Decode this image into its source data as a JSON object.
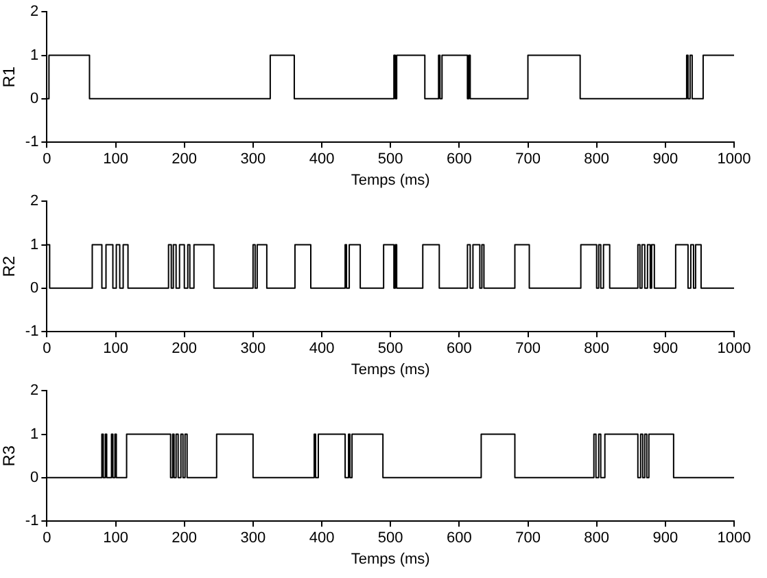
{
  "chart_data": [
    {
      "type": "line",
      "ylabel": "R1",
      "xlabel": "Temps (ms)",
      "xlim": [
        0,
        1000
      ],
      "xticks": [
        0,
        100,
        200,
        300,
        400,
        500,
        600,
        700,
        800,
        900,
        1000
      ],
      "ylim": [
        -1,
        2
      ],
      "yticks": [
        -1,
        0,
        1,
        2
      ],
      "grid": false,
      "series": [
        {
          "color": "#000000",
          "x": [
            0,
            3,
            3,
            62,
            62,
            325,
            325,
            360,
            360,
            505,
            505,
            507,
            507,
            509,
            509,
            550,
            550,
            570,
            570,
            572,
            572,
            575,
            575,
            612,
            612,
            614,
            614,
            616,
            616,
            700,
            700,
            776,
            776,
            931,
            931,
            933,
            933,
            936,
            936,
            939,
            939,
            955,
            955,
            1000
          ],
          "values": [
            0,
            0,
            1,
            1,
            0,
            0,
            1,
            1,
            0,
            0,
            1,
            1,
            0,
            0,
            1,
            1,
            0,
            0,
            1,
            1,
            0,
            0,
            1,
            1,
            0,
            0,
            1,
            1,
            0,
            0,
            1,
            1,
            0,
            0,
            1,
            1,
            0,
            0,
            1,
            1,
            0,
            0,
            1,
            1
          ]
        }
      ]
    },
    {
      "type": "line",
      "ylabel": "R2",
      "xlabel": "Temps (ms)",
      "xlim": [
        0,
        1000
      ],
      "xticks": [
        0,
        100,
        200,
        300,
        400,
        500,
        600,
        700,
        800,
        900,
        1000
      ],
      "ylim": [
        -1,
        2
      ],
      "yticks": [
        -1,
        0,
        1,
        2
      ],
      "grid": false,
      "series": [
        {
          "color": "#000000",
          "x": [
            0,
            4,
            4,
            66,
            66,
            80,
            80,
            86,
            86,
            96,
            96,
            101,
            101,
            106,
            106,
            111,
            111,
            118,
            118,
            177,
            177,
            181,
            181,
            184,
            184,
            188,
            188,
            193,
            193,
            200,
            200,
            205,
            205,
            208,
            208,
            214,
            214,
            243,
            243,
            300,
            300,
            303,
            303,
            306,
            306,
            320,
            320,
            361,
            361,
            384,
            384,
            434,
            434,
            436,
            436,
            440,
            440,
            456,
            456,
            490,
            490,
            505,
            505,
            507,
            507,
            509,
            509,
            547,
            547,
            571,
            571,
            612,
            612,
            616,
            616,
            620,
            620,
            630,
            630,
            633,
            633,
            636,
            636,
            681,
            681,
            702,
            702,
            777,
            777,
            800,
            800,
            803,
            803,
            806,
            806,
            810,
            810,
            819,
            819,
            860,
            860,
            863,
            863,
            866,
            866,
            870,
            870,
            874,
            874,
            878,
            878,
            880,
            880,
            884,
            884,
            915,
            915,
            933,
            933,
            937,
            937,
            941,
            941,
            944,
            944,
            952,
            952,
            1000
          ],
          "values": [
            1,
            1,
            0,
            0,
            1,
            1,
            0,
            0,
            1,
            1,
            0,
            0,
            1,
            1,
            0,
            0,
            1,
            1,
            0,
            0,
            1,
            1,
            0,
            0,
            1,
            1,
            0,
            0,
            1,
            1,
            0,
            0,
            1,
            1,
            0,
            0,
            1,
            1,
            0,
            0,
            1,
            1,
            0,
            0,
            1,
            1,
            0,
            0,
            1,
            1,
            0,
            0,
            1,
            1,
            0,
            0,
            1,
            1,
            0,
            0,
            1,
            1,
            0,
            0,
            1,
            1,
            0,
            0,
            1,
            1,
            0,
            0,
            1,
            1,
            0,
            0,
            1,
            1,
            0,
            0,
            1,
            1,
            0,
            0,
            1,
            1,
            0,
            0,
            1,
            1,
            0,
            0,
            1,
            1,
            0,
            0,
            1,
            1,
            0,
            0,
            1,
            1,
            0,
            0,
            1,
            1,
            0,
            0,
            1,
            1,
            0,
            0,
            1,
            1,
            0,
            0,
            1,
            1,
            0,
            0,
            1,
            1,
            0,
            0,
            1,
            1,
            0,
            0
          ]
        }
      ]
    },
    {
      "type": "line",
      "ylabel": "R3",
      "xlabel": "Temps (ms)",
      "xlim": [
        0,
        1000
      ],
      "xticks": [
        0,
        100,
        200,
        300,
        400,
        500,
        600,
        700,
        800,
        900,
        1000
      ],
      "ylim": [
        -1,
        2
      ],
      "yticks": [
        -1,
        0,
        1,
        2
      ],
      "grid": false,
      "series": [
        {
          "color": "#000000",
          "x": [
            0,
            80,
            80,
            82,
            82,
            85,
            85,
            87,
            87,
            94,
            94,
            96,
            96,
            99,
            99,
            101,
            101,
            116,
            116,
            180,
            180,
            183,
            183,
            185,
            185,
            188,
            188,
            191,
            191,
            195,
            195,
            198,
            198,
            201,
            201,
            204,
            204,
            247,
            247,
            300,
            300,
            389,
            389,
            391,
            391,
            395,
            395,
            434,
            434,
            439,
            439,
            441,
            441,
            444,
            444,
            489,
            489,
            632,
            632,
            681,
            681,
            796,
            796,
            799,
            799,
            803,
            803,
            806,
            806,
            812,
            812,
            860,
            860,
            864,
            864,
            867,
            867,
            870,
            870,
            873,
            873,
            876,
            876,
            912,
            912,
            1000
          ],
          "values": [
            0,
            0,
            1,
            1,
            0,
            0,
            1,
            1,
            0,
            0,
            1,
            1,
            0,
            0,
            1,
            1,
            0,
            0,
            1,
            1,
            0,
            0,
            1,
            1,
            0,
            0,
            1,
            1,
            0,
            0,
            1,
            1,
            0,
            0,
            1,
            1,
            0,
            0,
            1,
            1,
            0,
            0,
            1,
            1,
            0,
            0,
            1,
            1,
            0,
            0,
            1,
            1,
            0,
            0,
            1,
            1,
            0,
            0,
            1,
            1,
            0,
            0,
            1,
            1,
            0,
            0,
            1,
            1,
            0,
            0,
            1,
            1,
            0,
            0,
            1,
            1,
            0,
            0,
            1,
            1,
            0,
            0,
            1,
            1,
            0,
            0
          ]
        }
      ]
    }
  ]
}
